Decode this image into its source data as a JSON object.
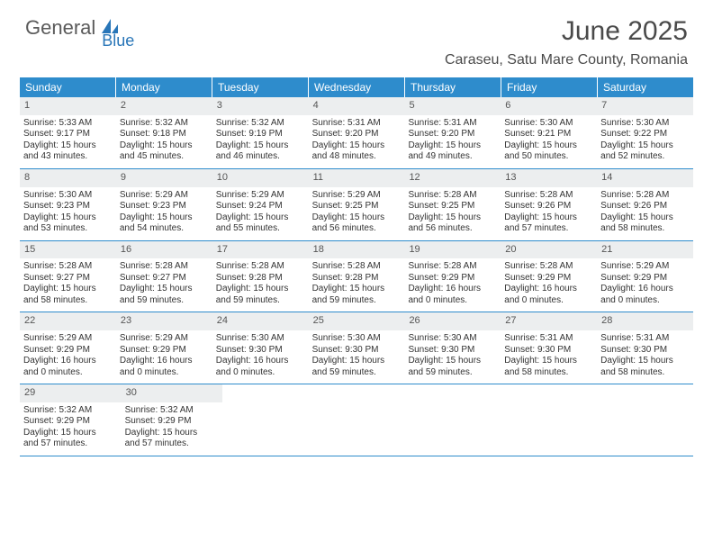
{
  "brand": {
    "part1": "General",
    "part2": "Blue"
  },
  "title": "June 2025",
  "location": "Caraseu, Satu Mare County, Romania",
  "colors": {
    "header_bg": "#2e8ccc",
    "header_text": "#ffffff",
    "daynum_bg": "#eceeef",
    "row_border": "#2e8ccc",
    "body_text": "#333333",
    "brand_gray": "#5a5a5a",
    "brand_blue": "#2976b8"
  },
  "dayNames": [
    "Sunday",
    "Monday",
    "Tuesday",
    "Wednesday",
    "Thursday",
    "Friday",
    "Saturday"
  ],
  "weeks": [
    [
      {
        "n": "1",
        "sr": "Sunrise: 5:33 AM",
        "ss": "Sunset: 9:17 PM",
        "d1": "Daylight: 15 hours",
        "d2": "and 43 minutes."
      },
      {
        "n": "2",
        "sr": "Sunrise: 5:32 AM",
        "ss": "Sunset: 9:18 PM",
        "d1": "Daylight: 15 hours",
        "d2": "and 45 minutes."
      },
      {
        "n": "3",
        "sr": "Sunrise: 5:32 AM",
        "ss": "Sunset: 9:19 PM",
        "d1": "Daylight: 15 hours",
        "d2": "and 46 minutes."
      },
      {
        "n": "4",
        "sr": "Sunrise: 5:31 AM",
        "ss": "Sunset: 9:20 PM",
        "d1": "Daylight: 15 hours",
        "d2": "and 48 minutes."
      },
      {
        "n": "5",
        "sr": "Sunrise: 5:31 AM",
        "ss": "Sunset: 9:20 PM",
        "d1": "Daylight: 15 hours",
        "d2": "and 49 minutes."
      },
      {
        "n": "6",
        "sr": "Sunrise: 5:30 AM",
        "ss": "Sunset: 9:21 PM",
        "d1": "Daylight: 15 hours",
        "d2": "and 50 minutes."
      },
      {
        "n": "7",
        "sr": "Sunrise: 5:30 AM",
        "ss": "Sunset: 9:22 PM",
        "d1": "Daylight: 15 hours",
        "d2": "and 52 minutes."
      }
    ],
    [
      {
        "n": "8",
        "sr": "Sunrise: 5:30 AM",
        "ss": "Sunset: 9:23 PM",
        "d1": "Daylight: 15 hours",
        "d2": "and 53 minutes."
      },
      {
        "n": "9",
        "sr": "Sunrise: 5:29 AM",
        "ss": "Sunset: 9:23 PM",
        "d1": "Daylight: 15 hours",
        "d2": "and 54 minutes."
      },
      {
        "n": "10",
        "sr": "Sunrise: 5:29 AM",
        "ss": "Sunset: 9:24 PM",
        "d1": "Daylight: 15 hours",
        "d2": "and 55 minutes."
      },
      {
        "n": "11",
        "sr": "Sunrise: 5:29 AM",
        "ss": "Sunset: 9:25 PM",
        "d1": "Daylight: 15 hours",
        "d2": "and 56 minutes."
      },
      {
        "n": "12",
        "sr": "Sunrise: 5:28 AM",
        "ss": "Sunset: 9:25 PM",
        "d1": "Daylight: 15 hours",
        "d2": "and 56 minutes."
      },
      {
        "n": "13",
        "sr": "Sunrise: 5:28 AM",
        "ss": "Sunset: 9:26 PM",
        "d1": "Daylight: 15 hours",
        "d2": "and 57 minutes."
      },
      {
        "n": "14",
        "sr": "Sunrise: 5:28 AM",
        "ss": "Sunset: 9:26 PM",
        "d1": "Daylight: 15 hours",
        "d2": "and 58 minutes."
      }
    ],
    [
      {
        "n": "15",
        "sr": "Sunrise: 5:28 AM",
        "ss": "Sunset: 9:27 PM",
        "d1": "Daylight: 15 hours",
        "d2": "and 58 minutes."
      },
      {
        "n": "16",
        "sr": "Sunrise: 5:28 AM",
        "ss": "Sunset: 9:27 PM",
        "d1": "Daylight: 15 hours",
        "d2": "and 59 minutes."
      },
      {
        "n": "17",
        "sr": "Sunrise: 5:28 AM",
        "ss": "Sunset: 9:28 PM",
        "d1": "Daylight: 15 hours",
        "d2": "and 59 minutes."
      },
      {
        "n": "18",
        "sr": "Sunrise: 5:28 AM",
        "ss": "Sunset: 9:28 PM",
        "d1": "Daylight: 15 hours",
        "d2": "and 59 minutes."
      },
      {
        "n": "19",
        "sr": "Sunrise: 5:28 AM",
        "ss": "Sunset: 9:29 PM",
        "d1": "Daylight: 16 hours",
        "d2": "and 0 minutes."
      },
      {
        "n": "20",
        "sr": "Sunrise: 5:28 AM",
        "ss": "Sunset: 9:29 PM",
        "d1": "Daylight: 16 hours",
        "d2": "and 0 minutes."
      },
      {
        "n": "21",
        "sr": "Sunrise: 5:29 AM",
        "ss": "Sunset: 9:29 PM",
        "d1": "Daylight: 16 hours",
        "d2": "and 0 minutes."
      }
    ],
    [
      {
        "n": "22",
        "sr": "Sunrise: 5:29 AM",
        "ss": "Sunset: 9:29 PM",
        "d1": "Daylight: 16 hours",
        "d2": "and 0 minutes."
      },
      {
        "n": "23",
        "sr": "Sunrise: 5:29 AM",
        "ss": "Sunset: 9:29 PM",
        "d1": "Daylight: 16 hours",
        "d2": "and 0 minutes."
      },
      {
        "n": "24",
        "sr": "Sunrise: 5:30 AM",
        "ss": "Sunset: 9:30 PM",
        "d1": "Daylight: 16 hours",
        "d2": "and 0 minutes."
      },
      {
        "n": "25",
        "sr": "Sunrise: 5:30 AM",
        "ss": "Sunset: 9:30 PM",
        "d1": "Daylight: 15 hours",
        "d2": "and 59 minutes."
      },
      {
        "n": "26",
        "sr": "Sunrise: 5:30 AM",
        "ss": "Sunset: 9:30 PM",
        "d1": "Daylight: 15 hours",
        "d2": "and 59 minutes."
      },
      {
        "n": "27",
        "sr": "Sunrise: 5:31 AM",
        "ss": "Sunset: 9:30 PM",
        "d1": "Daylight: 15 hours",
        "d2": "and 58 minutes."
      },
      {
        "n": "28",
        "sr": "Sunrise: 5:31 AM",
        "ss": "Sunset: 9:30 PM",
        "d1": "Daylight: 15 hours",
        "d2": "and 58 minutes."
      }
    ],
    [
      {
        "n": "29",
        "sr": "Sunrise: 5:32 AM",
        "ss": "Sunset: 9:29 PM",
        "d1": "Daylight: 15 hours",
        "d2": "and 57 minutes."
      },
      {
        "n": "30",
        "sr": "Sunrise: 5:32 AM",
        "ss": "Sunset: 9:29 PM",
        "d1": "Daylight: 15 hours",
        "d2": "and 57 minutes."
      },
      null,
      null,
      null,
      null,
      null
    ]
  ]
}
